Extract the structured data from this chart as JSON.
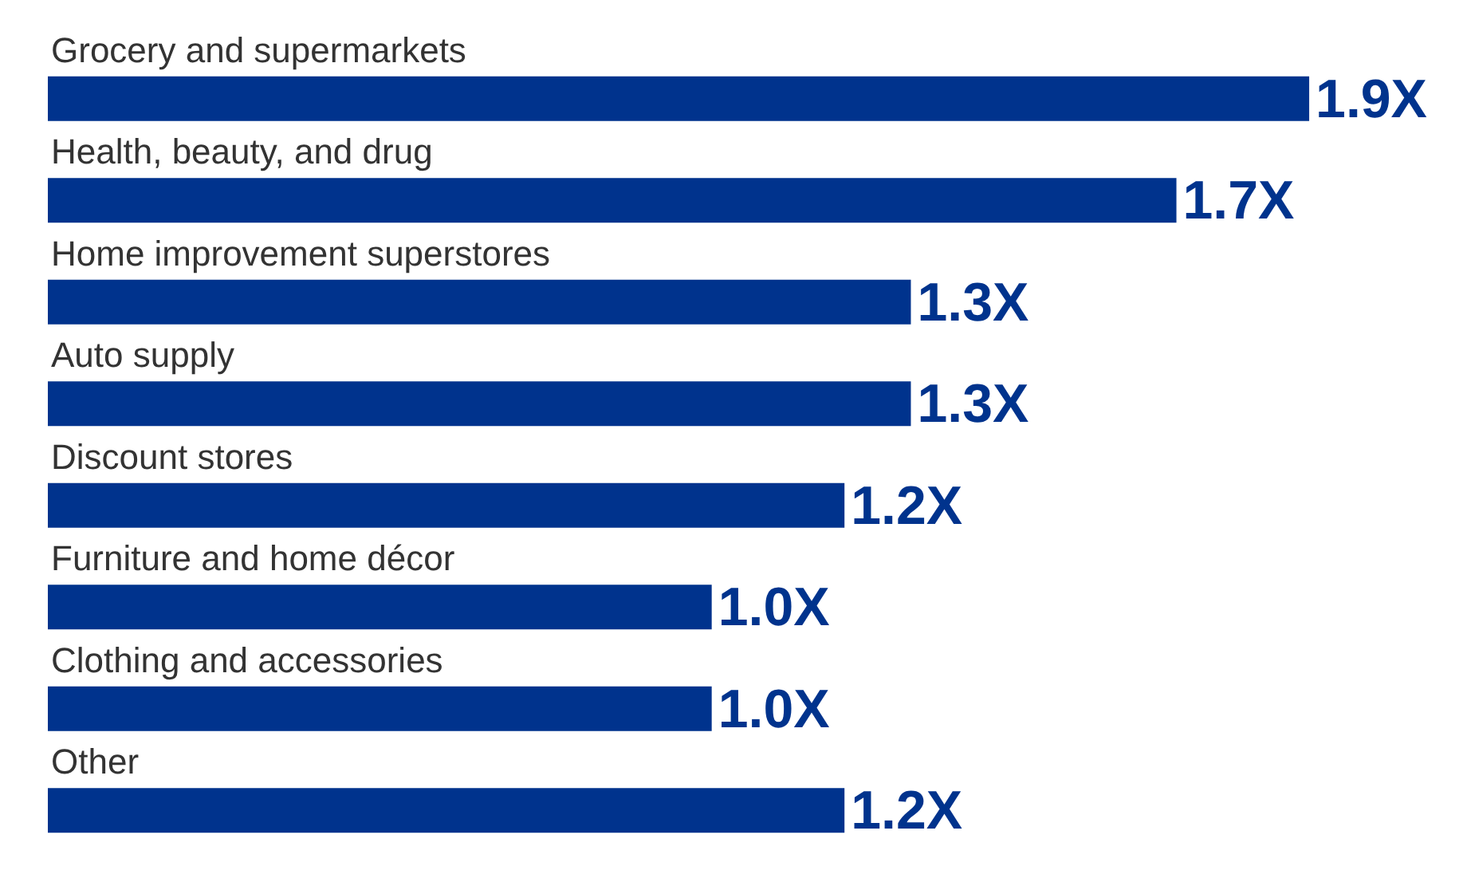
{
  "chart_data": {
    "type": "bar",
    "orientation": "horizontal",
    "categories": [
      "Grocery and supermarkets",
      "Health, beauty, and drug",
      "Home improvement superstores",
      "Auto supply",
      "Discount stores",
      "Furniture and home décor",
      "Clothing and accessories",
      "Other"
    ],
    "values": [
      1.9,
      1.7,
      1.3,
      1.3,
      1.2,
      1.0,
      1.0,
      1.2
    ],
    "value_labels": [
      "1.9X",
      "1.7X",
      "1.3X",
      "1.3X",
      "1.2X",
      "1.0X",
      "1.0X",
      "1.2X"
    ],
    "color": "#00338d"
  }
}
